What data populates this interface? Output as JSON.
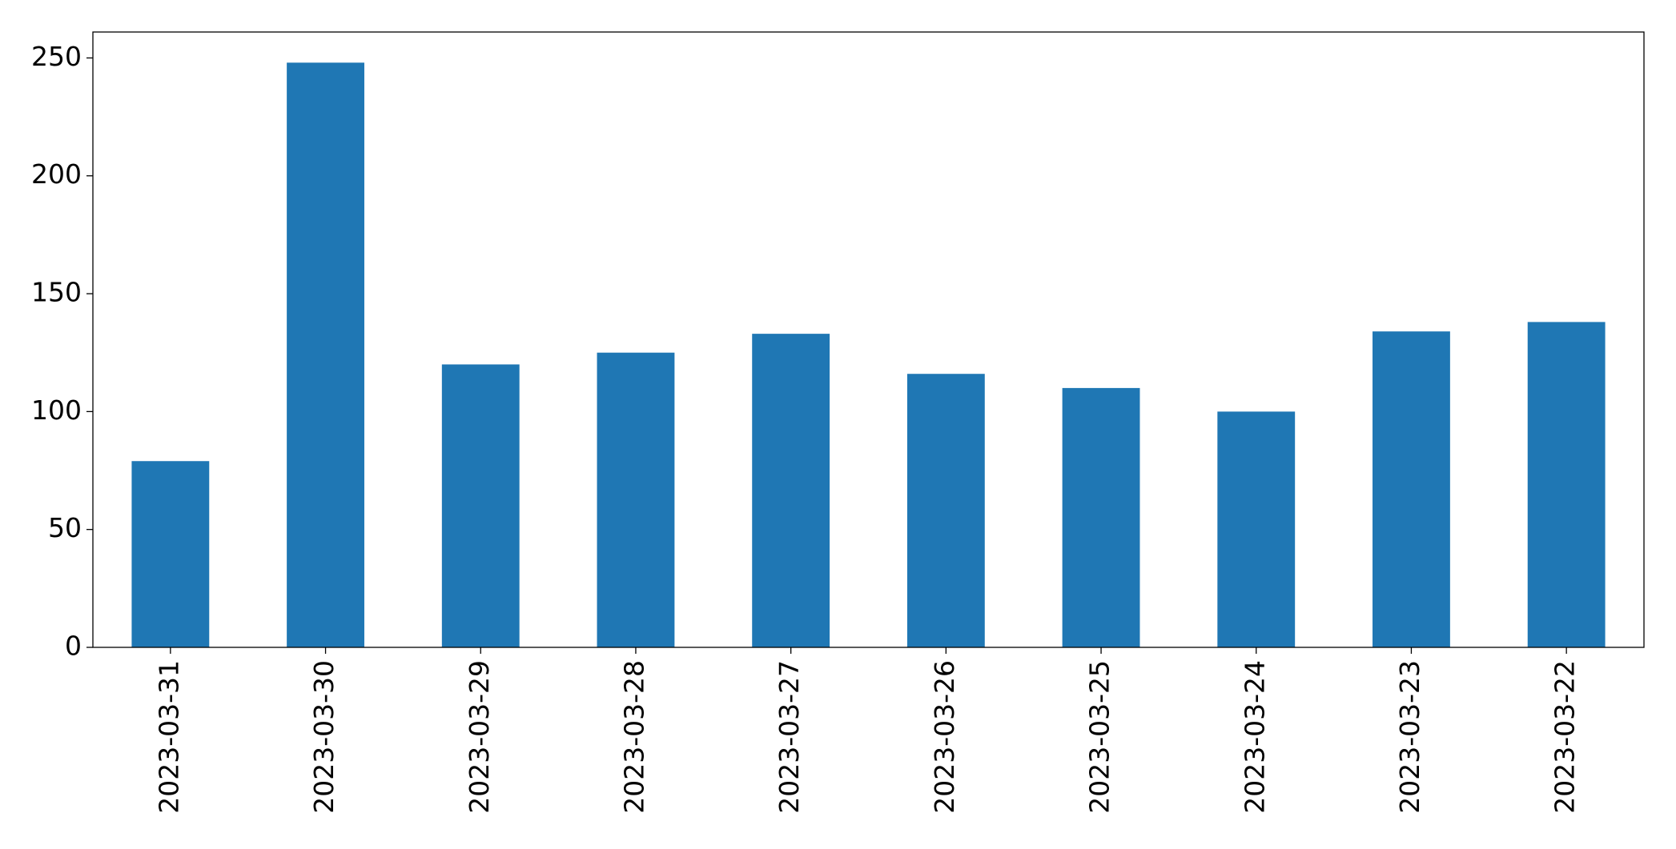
{
  "chart_data": {
    "type": "bar",
    "categories": [
      "2023-03-31",
      "2023-03-30",
      "2023-03-29",
      "2023-03-28",
      "2023-03-27",
      "2023-03-26",
      "2023-03-25",
      "2023-03-24",
      "2023-03-23",
      "2023-03-22"
    ],
    "values": [
      79,
      248,
      120,
      125,
      133,
      116,
      110,
      100,
      134,
      138
    ],
    "color": "#1f77b4",
    "ylim": [
      0,
      261
    ],
    "yticks": [
      0,
      50,
      100,
      150,
      200,
      250
    ],
    "grid": false
  }
}
